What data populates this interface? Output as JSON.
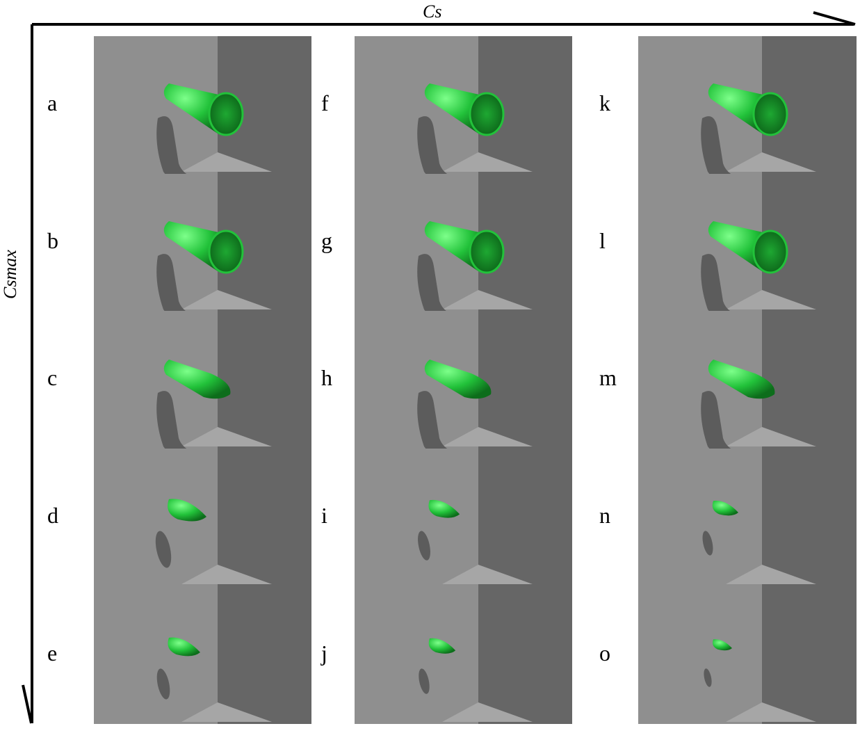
{
  "axes": {
    "x_label": "Cs",
    "y_label": "Csmax"
  },
  "columns": [
    {
      "panels": [
        {
          "label": "a",
          "shape": "open-tube"
        },
        {
          "label": "b",
          "shape": "open-tube"
        },
        {
          "label": "c",
          "shape": "closed-tube"
        },
        {
          "label": "d",
          "shape": "blob"
        },
        {
          "label": "e",
          "shape": "blob"
        }
      ]
    },
    {
      "panels": [
        {
          "label": "f",
          "shape": "open-tube"
        },
        {
          "label": "g",
          "shape": "open-tube"
        },
        {
          "label": "h",
          "shape": "closed-tube"
        },
        {
          "label": "i",
          "shape": "blob"
        },
        {
          "label": "j",
          "shape": "blob"
        }
      ]
    },
    {
      "panels": [
        {
          "label": "k",
          "shape": "open-tube"
        },
        {
          "label": "l",
          "shape": "open-tube"
        },
        {
          "label": "m",
          "shape": "closed-tube"
        },
        {
          "label": "n",
          "shape": "blob"
        },
        {
          "label": "o",
          "shape": "blob"
        }
      ]
    }
  ],
  "colors": {
    "wall_left": "#8f8f8f",
    "wall_right": "#666666",
    "floor": "#a6a6a6",
    "shadow": "#5c5c5c",
    "object": "#22c23a",
    "object_highlight": "#6cf07a",
    "object_dark": "#0f7a1e"
  }
}
